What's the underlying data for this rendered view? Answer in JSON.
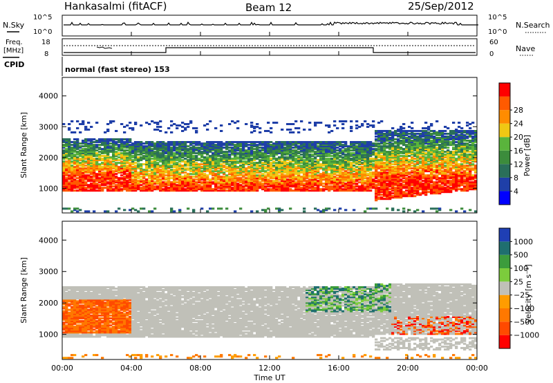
{
  "header": {
    "station": "Hankasalmi (fitACF)",
    "beam": "Beam 12",
    "date": "25/Sep/2012"
  },
  "top_panels": {
    "nsky_label": "N.Sky",
    "nsky_ticks": [
      "10^5",
      "10^0"
    ],
    "nsearch_label": "N.Search",
    "nsearch_ticks": [
      "10^5",
      "10^0"
    ],
    "freq_label": "Freq.",
    "freq_unit": "[MHz]",
    "freq_ticks": [
      "18",
      "8"
    ],
    "nave_label": "Nave",
    "nave_ticks": [
      "60",
      "0"
    ],
    "cpid_label": "CPID",
    "cpid_text": "normal (fast stereo) 153"
  },
  "colors": {
    "power_scale": [
      "#0000ff",
      "#1f3fa8",
      "#2a6f5a",
      "#3c8c3c",
      "#5ab43c",
      "#f0c814",
      "#ff8c00",
      "#ff5a00",
      "#ff0000"
    ],
    "velocity_scale": [
      "#1f3fb4",
      "#1f6f6f",
      "#3c9c3c",
      "#7ccc3c",
      "#c0c0b8",
      "#ff9c00",
      "#ff7800",
      "#ff4a00",
      "#ff0000"
    ],
    "ground_scatter": "#c0c0b8"
  },
  "chart_data": [
    {
      "type": "heatmap",
      "name": "power",
      "ylabel": "Slant Range [km]",
      "yticks": [
        "1000",
        "2000",
        "3000",
        "4000"
      ],
      "ylim": [
        200,
        4600
      ],
      "colorbar_label": "Power [dB]",
      "colorbar_ticks": [
        "4",
        "8",
        "12",
        "16",
        "20",
        "24",
        "28"
      ],
      "colorbar_range": [
        0,
        32
      ],
      "xlim_hours": [
        0,
        24
      ]
    },
    {
      "type": "heatmap",
      "name": "velocity",
      "ylabel": "Slant Range [km]",
      "yticks": [
        "1000",
        "2000",
        "3000",
        "4000"
      ],
      "ylim": [
        200,
        4600
      ],
      "colorbar_label": "Velocity [m s⁻¹]",
      "colorbar_ticks": [
        "1000",
        "500",
        "100",
        "25",
        "−25",
        "−100",
        "−500",
        "−1000"
      ],
      "xlim_hours": [
        0,
        24
      ]
    }
  ],
  "x_axis": {
    "ticks": [
      "00:00",
      "04:00",
      "08:00",
      "12:00",
      "16:00",
      "20:00",
      "00:00"
    ],
    "label": "Time UT"
  }
}
